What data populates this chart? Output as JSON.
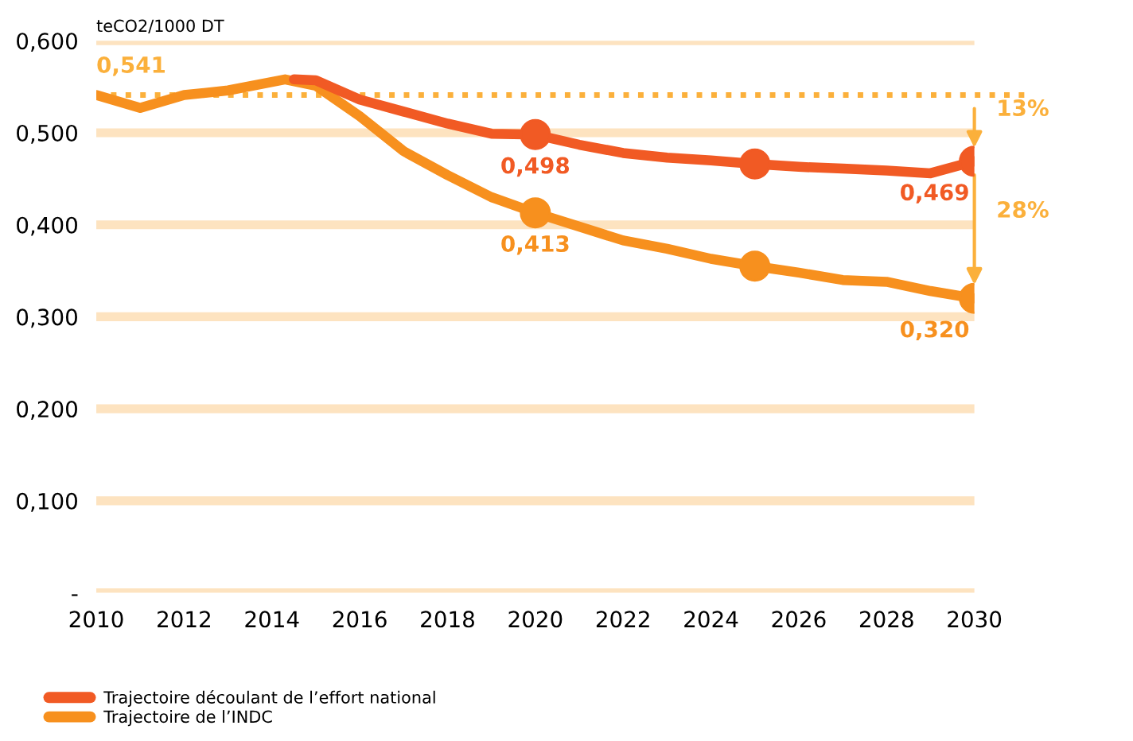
{
  "chart_data": {
    "type": "line",
    "ylabel": "teCO2/1000 DT",
    "xlim": [
      2010,
      2030
    ],
    "xticks": [
      2010,
      2012,
      2014,
      2016,
      2018,
      2020,
      2022,
      2024,
      2026,
      2028,
      2030
    ],
    "ylim": [
      0,
      0.6
    ],
    "yticks": [
      {
        "value": 0,
        "label": "-"
      },
      {
        "value": 0.1,
        "label": "0,100"
      },
      {
        "value": 0.2,
        "label": "0,200"
      },
      {
        "value": 0.3,
        "label": "0,300"
      },
      {
        "value": 0.4,
        "label": "0,400"
      },
      {
        "value": 0.5,
        "label": "0,500"
      },
      {
        "value": 0.6,
        "label": "0,600"
      }
    ],
    "grid": "y",
    "legend": "bottom left",
    "series": [
      {
        "name": "Trajectoire découlant de l’effort national",
        "color": "#f15a24",
        "x": [
          2014.5,
          2015,
          2016,
          2017,
          2018,
          2019,
          2020,
          2021,
          2022,
          2023,
          2024,
          2025,
          2026,
          2027,
          2028,
          2029,
          2030
        ],
        "values": [
          0.558,
          0.557,
          0.536,
          0.523,
          0.51,
          0.499,
          0.498,
          0.487,
          0.478,
          0.473,
          0.47,
          0.466,
          0.463,
          0.461,
          0.459,
          0.456,
          0.469
        ]
      },
      {
        "name": "Trajectoire de l’INDC",
        "color": "#f7901e",
        "x": [
          2010,
          2011,
          2012,
          2013,
          2014.3,
          2015,
          2016,
          2017,
          2018,
          2019,
          2020,
          2021,
          2022,
          2023,
          2024,
          2025,
          2026,
          2027,
          2028,
          2029,
          2030
        ],
        "values": [
          0.541,
          0.527,
          0.541,
          0.546,
          0.558,
          0.551,
          0.518,
          0.48,
          0.454,
          0.43,
          0.413,
          0.398,
          0.383,
          0.374,
          0.363,
          0.355,
          0.348,
          0.34,
          0.338,
          0.328,
          0.32
        ]
      },
      {
        "type": "scatter",
        "color": "#f15a24",
        "x": [
          2020,
          2025,
          2030
        ],
        "values": [
          0.498,
          0.466,
          0.469
        ],
        "value_labels": [
          "0,498",
          null,
          "0,469"
        ]
      },
      {
        "type": "scatter",
        "color": "#f7901e",
        "x": [
          2020,
          2025,
          2030
        ],
        "values": [
          0.413,
          0.355,
          0.32
        ],
        "value_labels": [
          "0,413",
          null,
          "0,320"
        ]
      }
    ],
    "ref_lines": [
      {
        "axis": "y",
        "value": 0.541,
        "label": "0,541",
        "color": "#fbb03b",
        "line_style": "dotted"
      }
    ],
    "annotations": [
      "13%",
      "28%"
    ]
  }
}
